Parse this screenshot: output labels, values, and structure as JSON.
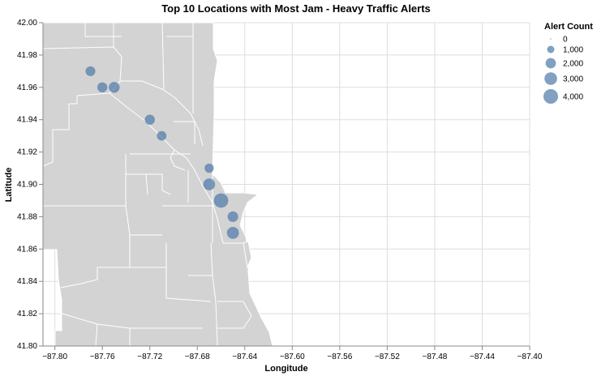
{
  "chart_data": {
    "type": "scatter",
    "title": "Top 10 Locations with Most Jam - Heavy Traffic Alerts",
    "xlabel": "Longitude",
    "ylabel": "Latitude",
    "xlim": [
      -87.81,
      -87.4
    ],
    "ylim": [
      41.8,
      42.0
    ],
    "x_ticks": [
      "−87.80",
      "−87.76",
      "−87.72",
      "−87.68",
      "−87.64",
      "−87.60",
      "−87.56",
      "−87.52",
      "−87.48",
      "−87.44",
      "−87.40"
    ],
    "y_ticks": [
      "41.80",
      "41.82",
      "41.84",
      "41.86",
      "41.88",
      "41.90",
      "41.92",
      "41.94",
      "41.96",
      "41.98",
      "42.00"
    ],
    "grid": true,
    "background_map": "Chicago neighborhoods",
    "mark_color": "#4c78a8",
    "legend": {
      "title": "Alert Count",
      "placement": "top-right",
      "entries": [
        {
          "label": "0",
          "value": 0
        },
        {
          "label": "1,000",
          "value": 1000
        },
        {
          "label": "2,000",
          "value": 2000
        },
        {
          "label": "3,000",
          "value": 3000
        },
        {
          "label": "4,000",
          "value": 4000
        }
      ]
    },
    "points": [
      {
        "lon": -87.77,
        "lat": 41.97,
        "alerts": 1800
      },
      {
        "lon": -87.76,
        "lat": 41.96,
        "alerts": 1900
      },
      {
        "lon": -87.75,
        "lat": 41.96,
        "alerts": 2200
      },
      {
        "lon": -87.72,
        "lat": 41.94,
        "alerts": 1900
      },
      {
        "lon": -87.71,
        "lat": 41.93,
        "alerts": 1700
      },
      {
        "lon": -87.67,
        "lat": 41.91,
        "alerts": 1600
      },
      {
        "lon": -87.67,
        "lat": 41.9,
        "alerts": 2600
      },
      {
        "lon": -87.66,
        "lat": 41.89,
        "alerts": 3900
      },
      {
        "lon": -87.65,
        "lat": 41.88,
        "alerts": 2100
      },
      {
        "lon": -87.65,
        "lat": 41.87,
        "alerts": 2700
      }
    ]
  }
}
